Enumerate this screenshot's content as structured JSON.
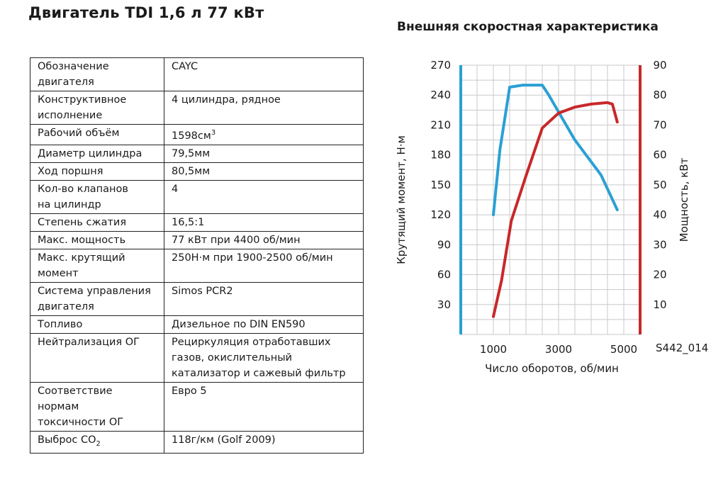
{
  "page_title": "Двигатель TDI 1,6 л 77 кВт",
  "specs": [
    {
      "label": [
        "Обозначение",
        "двигателя"
      ],
      "value": [
        "CAYC"
      ]
    },
    {
      "label": [
        "Конструктивное",
        "исполнение"
      ],
      "value": [
        "4 цилиндра, рядное"
      ]
    },
    {
      "label": [
        "Рабочий объём"
      ],
      "value": [
        "1598см"
      ],
      "value_sup": "3"
    },
    {
      "label": [
        "Диаметр цилиндра"
      ],
      "value": [
        "79,5мм"
      ]
    },
    {
      "label": [
        "Ход поршня"
      ],
      "value": [
        "80,5мм"
      ]
    },
    {
      "label": [
        "Кол-во клапанов",
        "на цилиндр"
      ],
      "value": [
        "4"
      ]
    },
    {
      "label": [
        "Степень сжатия"
      ],
      "value": [
        "16,5:1"
      ]
    },
    {
      "label": [
        "Макс. мощность"
      ],
      "value": [
        "77 кВт при 4400 об/мин"
      ]
    },
    {
      "label": [
        "Макс. крутящий",
        "момент"
      ],
      "value": [
        "250Н·м при 1900-2500 об/мин"
      ]
    },
    {
      "label": [
        "Система управления",
        "двигателя"
      ],
      "value": [
        "Simos PCR2"
      ]
    },
    {
      "label": [
        "Топливо"
      ],
      "value": [
        "Дизельное по DIN EN590"
      ]
    },
    {
      "label": [
        "Нейтрализация ОГ"
      ],
      "value": [
        "Рециркуляция отработавших",
        "газов, окислительный",
        "катализатор и сажевый фильтр"
      ]
    },
    {
      "label": [
        "Соответствие нормам",
        "токсичности ОГ"
      ],
      "value": [
        "Евро 5"
      ]
    },
    {
      "label": [
        "Выброс CO"
      ],
      "label_sub": "2",
      "value": [
        "118г/км (Golf 2009)"
      ]
    }
  ],
  "chart_data": {
    "type": "line",
    "title": "Внешняя скоростная характеристика",
    "xlabel": "Число оборотов, об/мин",
    "ylabel_left": "Крутящий момент, Н·м",
    "ylabel_right": "Мощность, кВт",
    "xlim": [
      0,
      5500
    ],
    "ylim_left": [
      0,
      270
    ],
    "ylim_right": [
      0,
      90
    ],
    "x_ticks": [
      1000,
      3000,
      5000
    ],
    "x_tick_labels": [
      "1000",
      "3000",
      "5000"
    ],
    "y_ticks_left": [
      30,
      60,
      90,
      120,
      150,
      180,
      210,
      240,
      270
    ],
    "y_tick_labels_left": [
      "30",
      "60",
      "90",
      "120",
      "150",
      "180",
      "210",
      "240",
      "270"
    ],
    "y_ticks_right": [
      10,
      20,
      30,
      40,
      50,
      60,
      70,
      80,
      90
    ],
    "y_tick_labels_right": [
      "10",
      "20",
      "30",
      "40",
      "50",
      "60",
      "70",
      "80",
      "90"
    ],
    "grid": true,
    "figure_id": "S442_014",
    "series": [
      {
        "axis": "left",
        "color": "#2aa0d4",
        "x": [
          1000,
          1200,
          1500,
          1900,
          2500,
          2700,
          3500,
          4300,
          4800
        ],
        "y": [
          120,
          185,
          248,
          250,
          250,
          240,
          195,
          160,
          125
        ]
      },
      {
        "axis": "right",
        "color": "#c8282a",
        "x": [
          1000,
          1250,
          1550,
          2000,
          2500,
          3000,
          3500,
          4000,
          4500,
          4650,
          4800
        ],
        "y": [
          6,
          18,
          38,
          53,
          69,
          74,
          76,
          77,
          77.5,
          77,
          71
        ]
      }
    ]
  },
  "colors": {
    "grid": "#c9c9c9",
    "torque_axis": "#2aa0d4",
    "power_axis": "#c8282a"
  }
}
